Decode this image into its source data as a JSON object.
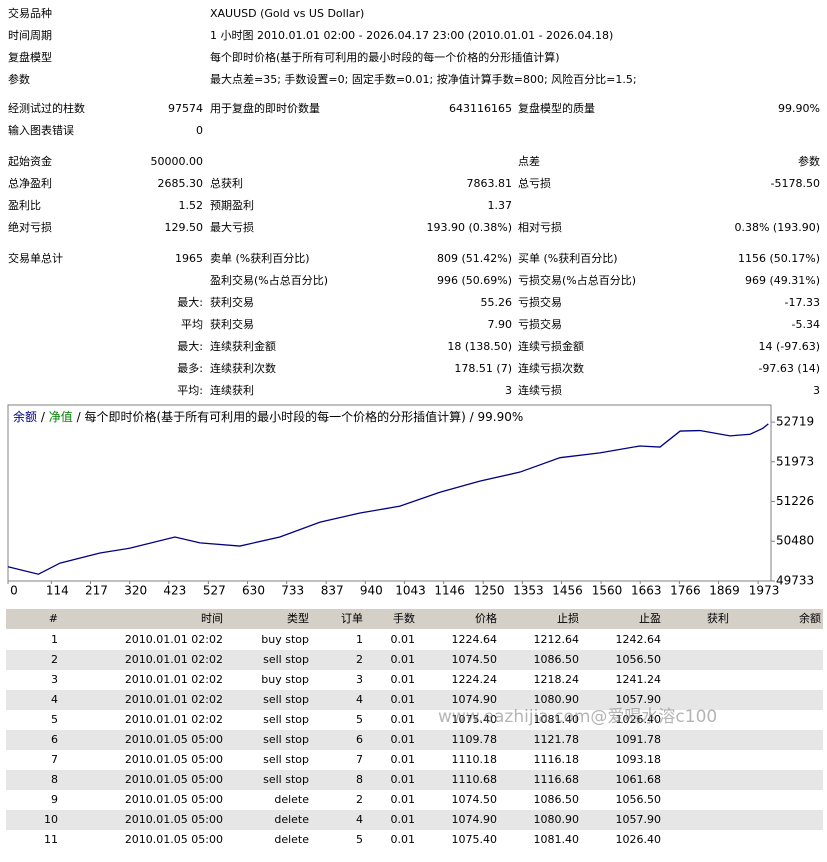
{
  "info": [
    {
      "label": "交易品种",
      "value": "XAUUSD (Gold vs US Dollar)"
    },
    {
      "label": "时间周期",
      "value": "1 小时图 2010.01.01 02:00 - 2026.04.17 23:00 (2010.01.01 - 2026.04.18)"
    },
    {
      "label": "复盘模型",
      "value": "每个即时价格(基于所有可利用的最小时段的每一个价格的分形插值计算)"
    },
    {
      "label": "参数",
      "value": "最大点差=35; 手数设置=0; 固定手数=0.01; 按净值计算手数=800; 风险百分比=1.5;"
    }
  ],
  "stats": [
    {
      "label": "经测试过的柱数",
      "value": "97574",
      "label2": "用于复盘的即时价数量",
      "value2": "643116165",
      "label3": "复盘模型的质量",
      "value3": "99.90%"
    },
    {
      "label": "输入图表错误",
      "value": "0"
    },
    {
      "label": "起始资金",
      "value": "50000.00",
      "label3": "点差",
      "value3": "参数"
    },
    {
      "label": "总净盈利",
      "value": "2685.30",
      "label2": "总获利",
      "value2": "7863.81",
      "label3": "总亏损",
      "value3": "-5178.50"
    },
    {
      "label": "盈利比",
      "value": "1.52",
      "label2": "预期盈利",
      "value2": "1.37"
    },
    {
      "label": "绝对亏损",
      "value": "129.50",
      "label2": "最大亏损",
      "value2": "193.90 (0.38%)",
      "label3": "相对亏损",
      "value3": "0.38% (193.90)"
    },
    {
      "label": "交易单总计",
      "value": "1965",
      "label2": "卖单 (%获利百分比)",
      "value2": "809 (51.42%)",
      "label3": "买单 (%获利百分比)",
      "value3": "1156 (50.17%)"
    },
    {
      "label2": "盈利交易(%占总百分比)",
      "value2": "996 (50.69%)",
      "label3": "亏损交易(%占总百分比)",
      "value3": "969 (49.31%)"
    },
    {
      "value": "最大:",
      "label2": "获利交易",
      "value2": "55.26",
      "label3": "亏损交易",
      "value3": "-17.33"
    },
    {
      "value": "平均",
      "label2": "获利交易",
      "value2": "7.90",
      "label3": "亏损交易",
      "value3": "-5.34"
    },
    {
      "value": "最大:",
      "label2": "连续获利金额",
      "value2": "18 (138.50)",
      "label3": "连续亏损金额",
      "value3": "14 (-97.63)"
    },
    {
      "value": "最多:",
      "label2": "连续获利次数",
      "value2": "178.51 (7)",
      "label3": "连续亏损次数",
      "value3": "-97.63 (14)"
    },
    {
      "value": "平均:",
      "label2": "连续获利",
      "value2": "3",
      "label3": "连续亏损",
      "value3": "3"
    }
  ],
  "chart_data": {
    "type": "line",
    "equity_name": "净值",
    "equity_color": "#008000",
    "separator": "/",
    "title": "每个即时价格(基于所有可利用的最小时段的每一个价格的分形插值计算)",
    "quality": "99.90%",
    "x": [
      0,
      80,
      137,
      242,
      321,
      439,
      505,
      610,
      715,
      821,
      926,
      1031,
      1136,
      1241,
      1347,
      1452,
      1557,
      1662,
      1715,
      1768,
      1820,
      1899,
      1952,
      1985,
      2000
    ],
    "series": [
      {
        "name": "余额",
        "color": "#000080",
        "values": [
          50000,
          49860,
          50070,
          50260,
          50350,
          50560,
          50450,
          50390,
          50560,
          50840,
          51010,
          51140,
          51400,
          51610,
          51780,
          52050,
          52140,
          52270,
          52250,
          52550,
          52560,
          52460,
          52490,
          52600,
          52685
        ]
      }
    ],
    "xlim": [
      0,
      2007
    ],
    "xticks": [
      0,
      114,
      217,
      320,
      423,
      527,
      630,
      733,
      837,
      940,
      1043,
      1146,
      1250,
      1353,
      1456,
      1560,
      1663,
      1766,
      1869,
      1973
    ],
    "ylim": [
      49733,
      53040
    ],
    "yticks": [
      52719,
      51973,
      51226,
      50480,
      49733
    ]
  },
  "table": {
    "header": [
      "#",
      "时间",
      "类型",
      "订单",
      "手数",
      "价格",
      "止损",
      "止盈",
      "获利",
      "余额"
    ],
    "rows": [
      [
        "1",
        "2010.01.01 02:02",
        "buy stop",
        "1",
        "0.01",
        "1224.64",
        "1212.64",
        "1242.64"
      ],
      [
        "2",
        "2010.01.01 02:02",
        "sell stop",
        "2",
        "0.01",
        "1074.50",
        "1086.50",
        "1056.50"
      ],
      [
        "3",
        "2010.01.01 02:02",
        "buy stop",
        "3",
        "0.01",
        "1224.24",
        "1218.24",
        "1241.24"
      ],
      [
        "4",
        "2010.01.01 02:02",
        "sell stop",
        "4",
        "0.01",
        "1074.90",
        "1080.90",
        "1057.90"
      ],
      [
        "5",
        "2010.01.01 02:02",
        "sell stop",
        "5",
        "0.01",
        "1075.40",
        "1081.40",
        "1026.40"
      ],
      [
        "6",
        "2010.01.05 05:00",
        "sell stop",
        "6",
        "0.01",
        "1109.78",
        "1121.78",
        "1091.78"
      ],
      [
        "7",
        "2010.01.05 05:00",
        "sell stop",
        "7",
        "0.01",
        "1110.18",
        "1116.18",
        "1093.18"
      ],
      [
        "8",
        "2010.01.05 05:00",
        "sell stop",
        "8",
        "0.01",
        "1110.68",
        "1116.68",
        "1061.68"
      ],
      [
        "9",
        "2010.01.05 05:00",
        "delete",
        "2",
        "0.01",
        "1074.50",
        "1086.50",
        "1056.50"
      ],
      [
        "10",
        "2010.01.05 05:00",
        "delete",
        "4",
        "0.01",
        "1074.90",
        "1080.90",
        "1057.90"
      ],
      [
        "11",
        "2010.01.05 05:00",
        "delete",
        "5",
        "0.01",
        "1075.40",
        "1081.40",
        "1026.40"
      ]
    ]
  },
  "watermark": "www.eazhijia.com@爱喝水溶c100"
}
